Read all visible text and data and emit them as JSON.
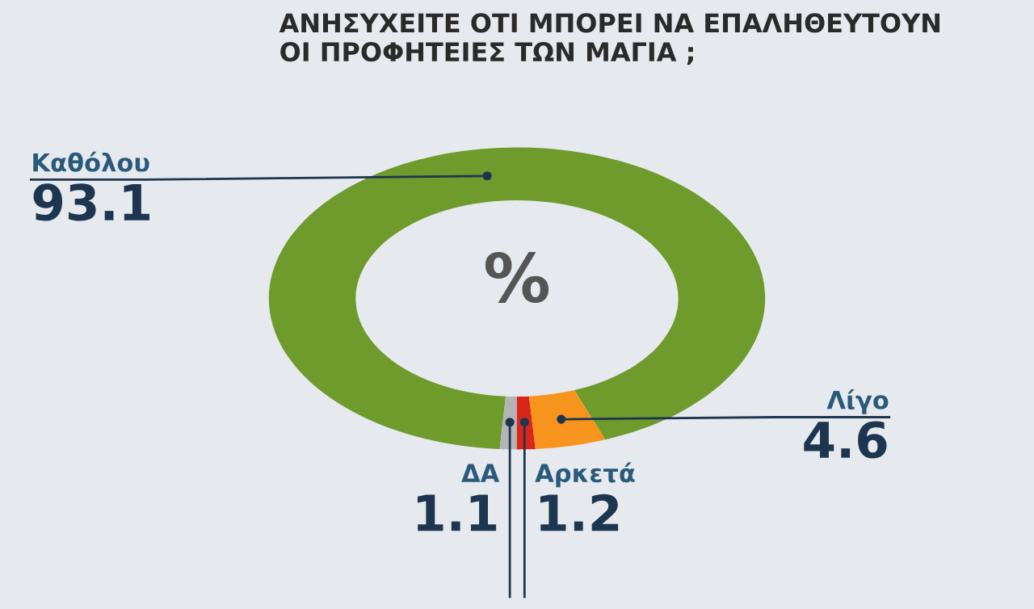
{
  "chart_data": {
    "type": "donut",
    "title": "ΑΝΗΣΥΧΕΙΤΕ ΟΤΙ ΜΠΟΡΕΙ ΝΑ ΕΠΑΛΗΘΕΥΤΟΥΝ\nΟΙ ΠΡΟΦΗΤΕΙΕΣ ΤΩΝ ΜΑΓΙΑ ;",
    "categories": [
      "Καθόλου",
      "ΔΑ",
      "Αρκετά",
      "Λίγο"
    ],
    "values": [
      93.1,
      1.1,
      1.2,
      4.6
    ],
    "colors": [
      "#6f9a2c",
      "#b4b4b4",
      "#d8261b",
      "#f7941d"
    ],
    "annotations": [
      "%"
    ],
    "data_labels": true
  }
}
